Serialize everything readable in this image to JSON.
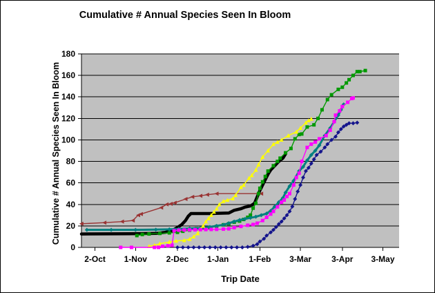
{
  "title": "Cumulative # Annual Species Seen In Bloom",
  "chart_data": {
    "type": "line",
    "title": "Cumulative # Annual Species Seen In Bloom",
    "xlabel": "Trip Date",
    "ylabel": "Cumulative # Annual Species Seen In Bloom",
    "plot_bg": "#C0C0C0",
    "grid": "horizontal",
    "legend": "none",
    "x_unit": "days after 2-Oct",
    "xlim": [
      -10,
      225
    ],
    "ylim": [
      0,
      180
    ],
    "y_ticks": [
      0,
      20,
      40,
      60,
      80,
      100,
      120,
      140,
      160,
      180
    ],
    "x_ticks": [
      {
        "day": 0,
        "label": "2-Oct"
      },
      {
        "day": 30,
        "label": "1-Nov"
      },
      {
        "day": 61,
        "label": "2-Dec"
      },
      {
        "day": 91,
        "label": "1-Jan"
      },
      {
        "day": 122,
        "label": "1-Feb"
      },
      {
        "day": 152,
        "label": "3-Mar"
      },
      {
        "day": 183,
        "label": "3-Apr"
      },
      {
        "day": 213,
        "label": "3-May"
      }
    ],
    "series": [
      {
        "name": "maroon-series",
        "color": "#993333",
        "marker": "triangle-left",
        "width": 1.4,
        "points": [
          [
            -10,
            22
          ],
          [
            7,
            23
          ],
          [
            20,
            24
          ],
          [
            28,
            25
          ],
          [
            32,
            30
          ],
          [
            34,
            31
          ],
          [
            49,
            37
          ],
          [
            53,
            40
          ],
          [
            56,
            40.5
          ],
          [
            59,
            41.5
          ],
          [
            67,
            45
          ],
          [
            72,
            47
          ],
          [
            78,
            48
          ],
          [
            83,
            49
          ],
          [
            90,
            50
          ],
          [
            123,
            50
          ]
        ]
      },
      {
        "name": "black-series",
        "color": "#000000",
        "marker": "none",
        "width": 4.5,
        "points": [
          [
            -10,
            12.5
          ],
          [
            25,
            12.7
          ],
          [
            45,
            13
          ],
          [
            52,
            14
          ],
          [
            57,
            15.5
          ],
          [
            61,
            18.5
          ],
          [
            64,
            21
          ],
          [
            67,
            25
          ],
          [
            69,
            29
          ],
          [
            71,
            31.5
          ],
          [
            85,
            31.5
          ],
          [
            99,
            32
          ],
          [
            103,
            34.5
          ],
          [
            108,
            36
          ],
          [
            111,
            37.5
          ],
          [
            115,
            38.5
          ],
          [
            118,
            41
          ],
          [
            120,
            47
          ],
          [
            122,
            53
          ],
          [
            124,
            58
          ],
          [
            126,
            63
          ],
          [
            128,
            68
          ],
          [
            130,
            72
          ],
          [
            133,
            76
          ],
          [
            136,
            80
          ],
          [
            139,
            83
          ],
          [
            141,
            87
          ]
        ]
      },
      {
        "name": "green-series",
        "color": "#009900",
        "marker": "square",
        "width": 1.4,
        "points": [
          [
            31,
            11
          ],
          [
            35,
            12
          ],
          [
            40,
            12.5
          ],
          [
            48,
            13
          ],
          [
            55,
            13.5
          ],
          [
            61,
            14
          ],
          [
            65,
            15
          ],
          [
            70,
            16
          ],
          [
            75,
            17.4
          ],
          [
            80,
            18
          ],
          [
            85,
            18.5
          ],
          [
            90,
            19.5
          ],
          [
            95,
            21
          ],
          [
            99,
            22
          ],
          [
            103,
            23.5
          ],
          [
            107,
            24.5
          ],
          [
            110,
            26
          ],
          [
            113,
            28
          ],
          [
            115,
            30
          ],
          [
            117,
            36.5
          ],
          [
            119,
            41
          ],
          [
            121,
            50
          ],
          [
            122,
            55
          ],
          [
            124,
            61
          ],
          [
            126,
            66
          ],
          [
            128,
            71
          ],
          [
            132,
            76
          ],
          [
            135,
            80
          ],
          [
            137,
            83
          ],
          [
            141,
            88
          ],
          [
            145,
            92
          ],
          [
            148,
            101
          ],
          [
            151,
            105
          ],
          [
            153,
            105.5
          ],
          [
            157,
            112
          ],
          [
            162,
            114
          ],
          [
            165,
            120
          ],
          [
            168,
            128
          ],
          [
            172,
            137.5
          ],
          [
            175,
            142
          ],
          [
            180,
            147
          ],
          [
            183,
            149
          ],
          [
            186,
            153
          ],
          [
            188,
            156
          ],
          [
            191,
            160
          ],
          [
            194,
            163.5
          ],
          [
            196,
            163.5
          ],
          [
            200,
            164.5
          ]
        ]
      },
      {
        "name": "teal-series",
        "color": "#008080",
        "marker": "diamond",
        "width": 3,
        "points": [
          [
            -6,
            16.3
          ],
          [
            12,
            16.3
          ],
          [
            30,
            16.3
          ],
          [
            45,
            16.5
          ],
          [
            55,
            16.8
          ],
          [
            62,
            17.2
          ],
          [
            70,
            17.6
          ],
          [
            78,
            18
          ],
          [
            85,
            19
          ],
          [
            90,
            20
          ],
          [
            95,
            21
          ],
          [
            99,
            22.5
          ],
          [
            103,
            24
          ],
          [
            107,
            25.5
          ],
          [
            111,
            26.5
          ],
          [
            115,
            27.5
          ],
          [
            119,
            28.5
          ],
          [
            123,
            30
          ],
          [
            127,
            31.5
          ],
          [
            130,
            34
          ],
          [
            133,
            38
          ],
          [
            136,
            42
          ],
          [
            139,
            46
          ],
          [
            141,
            51
          ],
          [
            144,
            57
          ],
          [
            147,
            62
          ],
          [
            151,
            71
          ],
          [
            154,
            75
          ],
          [
            157,
            81
          ],
          [
            160,
            86
          ],
          [
            163,
            90
          ],
          [
            166,
            95
          ],
          [
            170,
            104
          ],
          [
            174,
            111
          ],
          [
            177,
            117
          ],
          [
            180,
            123
          ],
          [
            182,
            128
          ],
          [
            184,
            133
          ]
        ]
      },
      {
        "name": "yellow-series",
        "color": "#FFFF00",
        "marker": "triangle-up",
        "width": 1.5,
        "points": [
          [
            40,
            1
          ],
          [
            44,
            2
          ],
          [
            48,
            3.5
          ],
          [
            55,
            5
          ],
          [
            60,
            6
          ],
          [
            66,
            6.6
          ],
          [
            70,
            7.7
          ],
          [
            73,
            10
          ],
          [
            76,
            13
          ],
          [
            78,
            17
          ],
          [
            80,
            20
          ],
          [
            82,
            24
          ],
          [
            84,
            27
          ],
          [
            86,
            30
          ],
          [
            88,
            33
          ],
          [
            90,
            36
          ],
          [
            92,
            40
          ],
          [
            95,
            43
          ],
          [
            98,
            44
          ],
          [
            102,
            45.5
          ],
          [
            104,
            48.5
          ],
          [
            108,
            56
          ],
          [
            110,
            58
          ],
          [
            114,
            64.5
          ],
          [
            116,
            67
          ],
          [
            119,
            72
          ],
          [
            121,
            77
          ],
          [
            124,
            84
          ],
          [
            128,
            90
          ],
          [
            132,
            96
          ],
          [
            135,
            98
          ],
          [
            138,
            100
          ],
          [
            143,
            104
          ],
          [
            149,
            107.5
          ],
          [
            152,
            111
          ],
          [
            156,
            116
          ],
          [
            158,
            118
          ],
          [
            160,
            119.5
          ]
        ]
      },
      {
        "name": "magenta-series",
        "color": "#FF00FF",
        "marker": "square",
        "width": 1.4,
        "points": [
          [
            19,
            0
          ],
          [
            27,
            0
          ],
          [
            44,
            0
          ],
          [
            47,
            0
          ],
          [
            50,
            1
          ],
          [
            54,
            1.5
          ],
          [
            57,
            2
          ],
          [
            58.5,
            15.5
          ],
          [
            62,
            16
          ],
          [
            66,
            16.2
          ],
          [
            70,
            16.3
          ],
          [
            74,
            16.4
          ],
          [
            78,
            16.5
          ],
          [
            82,
            16.6
          ],
          [
            86,
            16.7
          ],
          [
            90,
            16.8
          ],
          [
            95,
            17
          ],
          [
            99,
            17.3
          ],
          [
            103,
            18.4
          ],
          [
            108,
            19.5
          ],
          [
            113,
            20.6
          ],
          [
            117,
            21.3
          ],
          [
            120,
            22.5
          ],
          [
            124,
            25
          ],
          [
            127,
            28
          ],
          [
            130,
            31
          ],
          [
            132,
            33.5
          ],
          [
            135,
            37.7
          ],
          [
            138,
            42
          ],
          [
            140,
            44
          ],
          [
            142,
            47.4
          ],
          [
            144,
            50
          ],
          [
            147,
            58
          ],
          [
            149,
            65
          ],
          [
            151,
            69
          ],
          [
            153,
            80
          ],
          [
            157,
            93
          ],
          [
            160,
            96
          ],
          [
            163,
            98
          ],
          [
            166,
            101
          ],
          [
            171,
            104
          ],
          [
            174,
            109
          ],
          [
            177,
            117
          ],
          [
            178,
            123
          ],
          [
            181,
            127
          ],
          [
            183,
            131
          ],
          [
            187,
            135
          ],
          [
            190,
            138.5
          ],
          [
            191,
            139
          ]
        ]
      },
      {
        "name": "navy-series",
        "color": "#14148C",
        "marker": "diamond",
        "width": 1.4,
        "points": [
          [
            61,
            0
          ],
          [
            65,
            0
          ],
          [
            69,
            0
          ],
          [
            73,
            0
          ],
          [
            77,
            0
          ],
          [
            81,
            0
          ],
          [
            85,
            0
          ],
          [
            89,
            0
          ],
          [
            93,
            0
          ],
          [
            97,
            0
          ],
          [
            101,
            0
          ],
          [
            105,
            0
          ],
          [
            109,
            0
          ],
          [
            113,
            0.5
          ],
          [
            117,
            1.5
          ],
          [
            120,
            3
          ],
          [
            122,
            5.5
          ],
          [
            125,
            8
          ],
          [
            127,
            11
          ],
          [
            130,
            14
          ],
          [
            132,
            16.3
          ],
          [
            134,
            19
          ],
          [
            136,
            21.7
          ],
          [
            138,
            24
          ],
          [
            140,
            27
          ],
          [
            142,
            30
          ],
          [
            144,
            33.5
          ],
          [
            146,
            38
          ],
          [
            148,
            45
          ],
          [
            150,
            52
          ],
          [
            152,
            58
          ],
          [
            154,
            65
          ],
          [
            156,
            71
          ],
          [
            158,
            74
          ],
          [
            160,
            78
          ],
          [
            162,
            82
          ],
          [
            164,
            86
          ],
          [
            167,
            89
          ],
          [
            170,
            93
          ],
          [
            172,
            96
          ],
          [
            175,
            100
          ],
          [
            178,
            103
          ],
          [
            180,
            107
          ],
          [
            182,
            110
          ],
          [
            184,
            112.5
          ],
          [
            186,
            114
          ],
          [
            188,
            115.5
          ],
          [
            191,
            115.5
          ],
          [
            194,
            116
          ]
        ]
      }
    ]
  }
}
